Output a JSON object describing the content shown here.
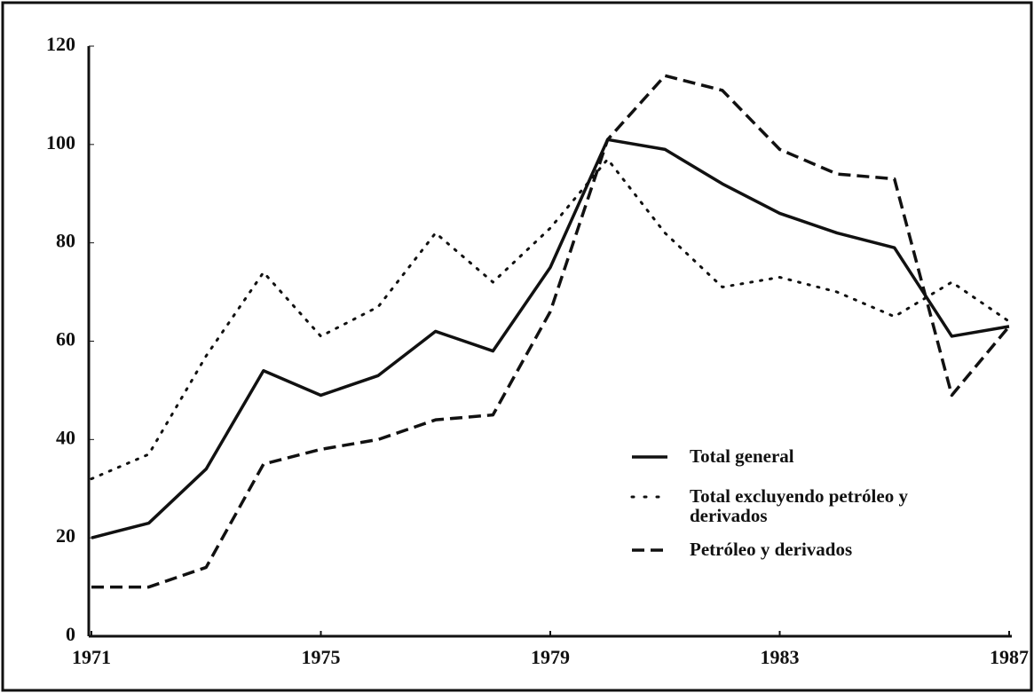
{
  "chart_data": {
    "type": "line",
    "x": [
      1971,
      1972,
      1973,
      1974,
      1975,
      1976,
      1977,
      1978,
      1979,
      1980,
      1981,
      1982,
      1983,
      1984,
      1985,
      1986,
      1987
    ],
    "series": [
      {
        "name": "Total general",
        "color": "#111111",
        "dash": "solid",
        "values": [
          20,
          23,
          34,
          54,
          49,
          53,
          62,
          58,
          75,
          101,
          99,
          92,
          86,
          82,
          79,
          61,
          63
        ]
      },
      {
        "name": "Total excluyendo petróleo y derivados",
        "color": "#111111",
        "dash": "dotted",
        "values": [
          32,
          37,
          57,
          74,
          61,
          67,
          82,
          72,
          83,
          97,
          82,
          71,
          73,
          70,
          65,
          72,
          64
        ]
      },
      {
        "name": "Petróleo y derivados",
        "color": "#111111",
        "dash": "dashed",
        "values": [
          10,
          10,
          14,
          35,
          38,
          40,
          44,
          45,
          66,
          101,
          114,
          111,
          99,
          94,
          93,
          49,
          63
        ]
      }
    ],
    "xlim": [
      1971,
      1987
    ],
    "xticks": [
      1971,
      1975,
      1979,
      1983,
      1987
    ],
    "ylim": [
      0,
      120
    ],
    "yticks": [
      0,
      20,
      40,
      60,
      80,
      100,
      120
    ],
    "grid": false
  }
}
